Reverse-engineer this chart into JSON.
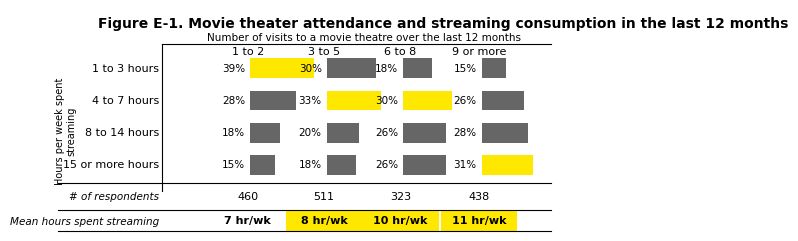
{
  "title": "Figure E-1. Movie theater attendance and streaming consumption in the last 12 months",
  "col_header_label": "Number of visits to a movie theatre over the last 12 months",
  "row_header_label": "Hours per week spent\nstreaming",
  "columns": [
    "1 to 2",
    "3 to 5",
    "6 to 8",
    "9 or more"
  ],
  "rows": [
    "1 to 3 hours",
    "4 to 7 hours",
    "8 to 14 hours",
    "15 or more hours"
  ],
  "values": [
    [
      39,
      30,
      18,
      15
    ],
    [
      28,
      33,
      30,
      26
    ],
    [
      18,
      20,
      26,
      28
    ],
    [
      15,
      18,
      26,
      31
    ]
  ],
  "highlights": [
    [
      true,
      false,
      false,
      false
    ],
    [
      false,
      true,
      true,
      false
    ],
    [
      false,
      false,
      false,
      false
    ],
    [
      false,
      false,
      false,
      true
    ]
  ],
  "respondents": [
    460,
    511,
    323,
    438
  ],
  "mean_hours": [
    "7 hr/wk",
    "8 hr/wk",
    "10 hr/wk",
    "11 hr/wk"
  ],
  "mean_hours_highlight": [
    false,
    true,
    true,
    true
  ],
  "yellow": "#FFE800",
  "gray": "#666666",
  "bg_white": "#FFFFFF",
  "title_fontsize": 10,
  "body_fontsize": 8
}
